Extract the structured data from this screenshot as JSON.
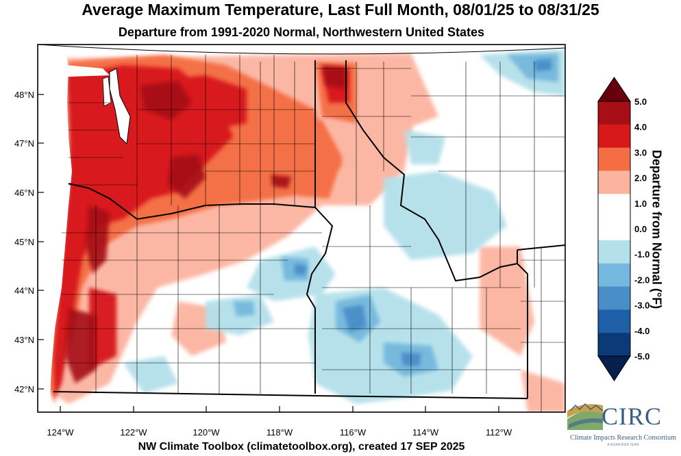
{
  "title": "Average Maximum Temperature, Last Full Month, 08/01/25 to 08/31/25",
  "subtitle": "Departure from 1991-2020 Normal, Northwestern United States",
  "footer": "NW Climate Toolbox (climatetoolbox.org), created 17 SEP 2025",
  "map": {
    "lat_labels": [
      "48°N",
      "47°N",
      "46°N",
      "45°N",
      "44°N",
      "43°N",
      "42°N"
    ],
    "lon_labels": [
      "124°W",
      "122°W",
      "120°W",
      "118°W",
      "116°W",
      "114°W",
      "112°W"
    ]
  },
  "colorbar": {
    "title": "Departure from Normal (°F)",
    "tick_labels": [
      "5.0",
      "4.0",
      "3.0",
      "2.0",
      "1.0",
      "0.0",
      "-1.0",
      "-2.0",
      "-3.0",
      "-4.0",
      "-5.0"
    ],
    "colors_top_to_bottom": [
      "#67000d",
      "#a50f15",
      "#d7191c",
      "#f46d43",
      "#fcb4a0",
      "#ffffff",
      "#ffffff",
      "#b3e0ea",
      "#74b8dd",
      "#4a8ec8",
      "#1f5fa8",
      "#0a3a78",
      "#061f4f"
    ]
  },
  "logo": {
    "name": "CIRC",
    "subtitle": "Climate Impacts Research Consortium",
    "tagline": "A NOAA RISA TEAM"
  }
}
